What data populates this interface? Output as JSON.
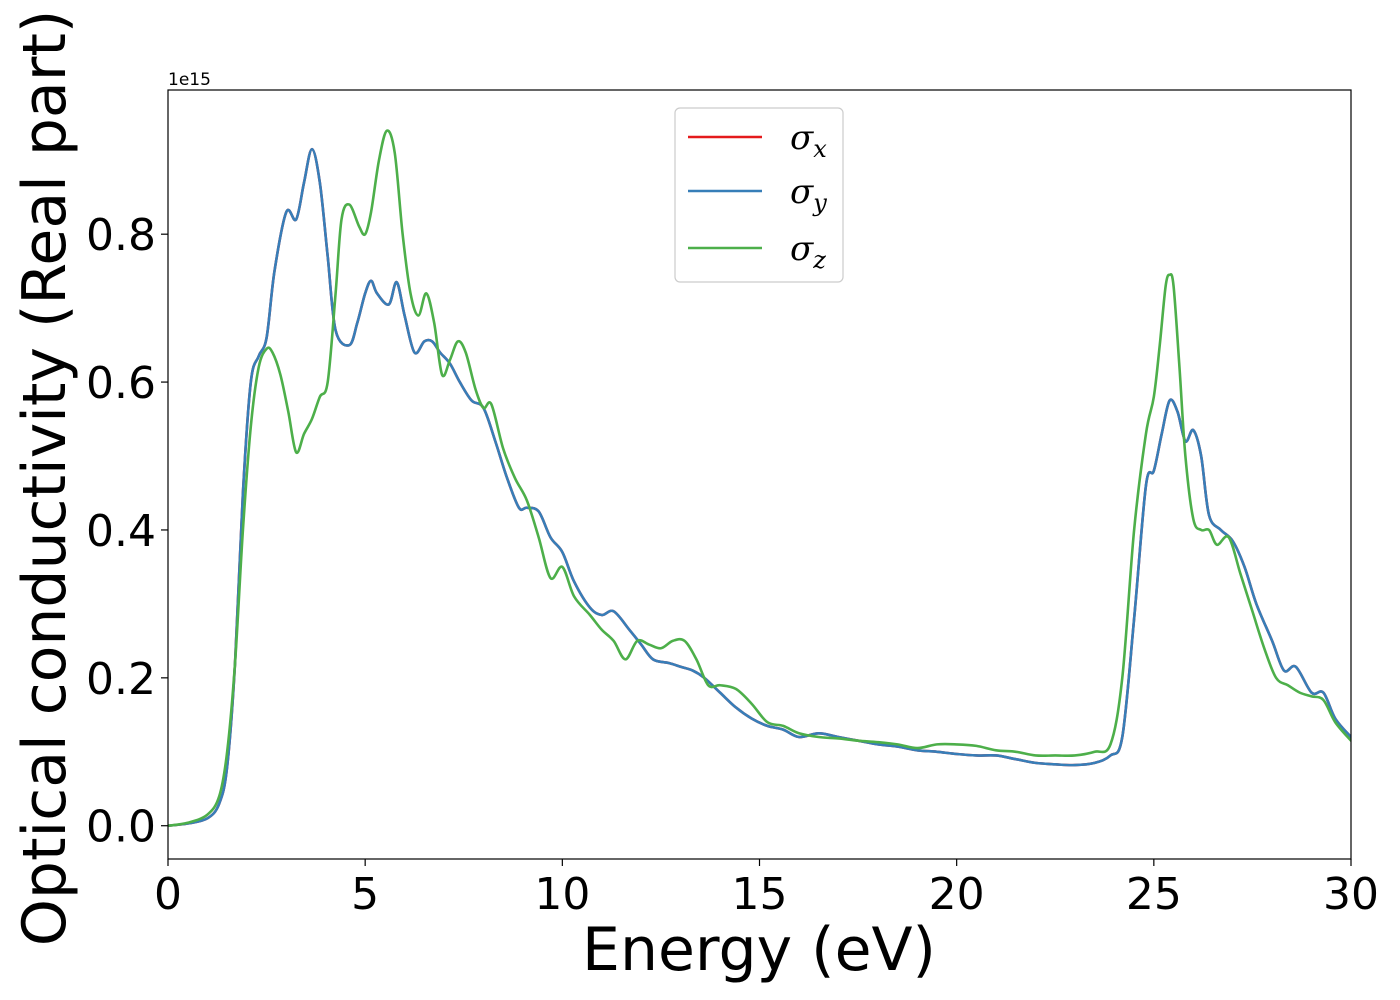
{
  "chart_data": {
    "type": "line",
    "xlabel": "Energy (eV)",
    "ylabel": "Optical conductivity (Real part)",
    "y_offset_label": "1e15",
    "xlim": [
      0,
      30
    ],
    "ylim": [
      -0.045,
      0.995
    ],
    "x_ticks": [
      0,
      5,
      10,
      15,
      20,
      25,
      30
    ],
    "x_tick_labels": [
      "0",
      "5",
      "10",
      "15",
      "20",
      "25",
      "30"
    ],
    "y_ticks": [
      0.0,
      0.2,
      0.4,
      0.6,
      0.8
    ],
    "y_tick_labels": [
      "0.0",
      "0.2",
      "0.4",
      "0.6",
      "0.8"
    ],
    "grid": false,
    "legend_position": "top-center",
    "series": [
      {
        "name": "σx",
        "legend_symbol": "σ",
        "legend_sub": "x",
        "color": "#e41a1c",
        "x": [
          0,
          0.5,
          1.0,
          1.3,
          1.5,
          1.7,
          1.9,
          2.1,
          2.3,
          2.5,
          2.7,
          3.0,
          3.25,
          3.45,
          3.65,
          3.85,
          4.05,
          4.25,
          4.6,
          4.8,
          5.0,
          5.15,
          5.3,
          5.6,
          5.8,
          6.0,
          6.25,
          6.5,
          6.7,
          6.9,
          7.15,
          7.4,
          7.7,
          8.0,
          8.3,
          8.6,
          8.9,
          9.1,
          9.4,
          9.7,
          10.0,
          10.3,
          10.7,
          11.0,
          11.3,
          11.7,
          12.0,
          12.3,
          12.7,
          13.0,
          13.3,
          13.6,
          14.0,
          14.4,
          14.8,
          15.2,
          15.6,
          16.0,
          16.5,
          17.0,
          17.5,
          18.0,
          18.5,
          19.0,
          19.5,
          20.0,
          20.5,
          21.0,
          21.5,
          22.0,
          22.5,
          23.0,
          23.5,
          23.9,
          24.2,
          24.5,
          24.8,
          25.0,
          25.2,
          25.4,
          25.6,
          25.8,
          26.0,
          26.2,
          26.4,
          26.7,
          27.0,
          27.3,
          27.6,
          28.0,
          28.3,
          28.6,
          29.0,
          29.3,
          29.6,
          30.0
        ],
        "y": [
          0.0,
          0.003,
          0.01,
          0.03,
          0.08,
          0.22,
          0.45,
          0.6,
          0.635,
          0.66,
          0.75,
          0.83,
          0.82,
          0.87,
          0.915,
          0.87,
          0.77,
          0.67,
          0.65,
          0.68,
          0.72,
          0.737,
          0.72,
          0.705,
          0.735,
          0.69,
          0.64,
          0.655,
          0.655,
          0.64,
          0.625,
          0.6,
          0.575,
          0.565,
          0.52,
          0.47,
          0.43,
          0.43,
          0.425,
          0.39,
          0.37,
          0.33,
          0.295,
          0.285,
          0.29,
          0.265,
          0.245,
          0.225,
          0.22,
          0.215,
          0.21,
          0.2,
          0.18,
          0.16,
          0.145,
          0.135,
          0.13,
          0.12,
          0.125,
          0.12,
          0.115,
          0.11,
          0.107,
          0.102,
          0.1,
          0.097,
          0.095,
          0.095,
          0.09,
          0.085,
          0.083,
          0.082,
          0.085,
          0.095,
          0.12,
          0.28,
          0.46,
          0.48,
          0.53,
          0.575,
          0.56,
          0.52,
          0.535,
          0.5,
          0.42,
          0.4,
          0.385,
          0.35,
          0.3,
          0.25,
          0.21,
          0.215,
          0.18,
          0.18,
          0.145,
          0.12
        ]
      },
      {
        "name": "σy",
        "legend_symbol": "σ",
        "legend_sub": "y",
        "color": "#377eb8",
        "x": [
          0,
          0.5,
          1.0,
          1.3,
          1.5,
          1.7,
          1.9,
          2.1,
          2.3,
          2.5,
          2.7,
          3.0,
          3.25,
          3.45,
          3.65,
          3.85,
          4.05,
          4.25,
          4.6,
          4.8,
          5.0,
          5.15,
          5.3,
          5.6,
          5.8,
          6.0,
          6.25,
          6.5,
          6.7,
          6.9,
          7.15,
          7.4,
          7.7,
          8.0,
          8.3,
          8.6,
          8.9,
          9.1,
          9.4,
          9.7,
          10.0,
          10.3,
          10.7,
          11.0,
          11.3,
          11.7,
          12.0,
          12.3,
          12.7,
          13.0,
          13.3,
          13.6,
          14.0,
          14.4,
          14.8,
          15.2,
          15.6,
          16.0,
          16.5,
          17.0,
          17.5,
          18.0,
          18.5,
          19.0,
          19.5,
          20.0,
          20.5,
          21.0,
          21.5,
          22.0,
          22.5,
          23.0,
          23.5,
          23.9,
          24.2,
          24.5,
          24.8,
          25.0,
          25.2,
          25.4,
          25.6,
          25.8,
          26.0,
          26.2,
          26.4,
          26.7,
          27.0,
          27.3,
          27.6,
          28.0,
          28.3,
          28.6,
          29.0,
          29.3,
          29.6,
          30.0
        ],
        "y": [
          0.0,
          0.003,
          0.01,
          0.03,
          0.08,
          0.22,
          0.45,
          0.6,
          0.635,
          0.66,
          0.75,
          0.83,
          0.82,
          0.87,
          0.915,
          0.87,
          0.77,
          0.67,
          0.65,
          0.68,
          0.72,
          0.737,
          0.72,
          0.705,
          0.735,
          0.69,
          0.64,
          0.655,
          0.655,
          0.64,
          0.625,
          0.6,
          0.575,
          0.565,
          0.52,
          0.47,
          0.43,
          0.43,
          0.425,
          0.39,
          0.37,
          0.33,
          0.295,
          0.285,
          0.29,
          0.265,
          0.245,
          0.225,
          0.22,
          0.215,
          0.21,
          0.2,
          0.18,
          0.16,
          0.145,
          0.135,
          0.13,
          0.12,
          0.125,
          0.12,
          0.115,
          0.11,
          0.107,
          0.102,
          0.1,
          0.097,
          0.095,
          0.095,
          0.09,
          0.085,
          0.083,
          0.082,
          0.085,
          0.095,
          0.12,
          0.28,
          0.46,
          0.48,
          0.53,
          0.575,
          0.56,
          0.52,
          0.535,
          0.5,
          0.42,
          0.4,
          0.385,
          0.35,
          0.3,
          0.25,
          0.21,
          0.215,
          0.18,
          0.18,
          0.145,
          0.12
        ]
      },
      {
        "name": "σz",
        "legend_symbol": "σ",
        "legend_sub": "z",
        "color": "#4daf4a",
        "x": [
          0,
          0.5,
          1.0,
          1.3,
          1.5,
          1.7,
          1.9,
          2.1,
          2.3,
          2.5,
          2.65,
          2.85,
          3.05,
          3.25,
          3.45,
          3.65,
          3.85,
          4.05,
          4.25,
          4.4,
          4.6,
          4.85,
          5.0,
          5.15,
          5.35,
          5.55,
          5.75,
          5.95,
          6.15,
          6.35,
          6.55,
          6.75,
          6.95,
          7.15,
          7.35,
          7.55,
          7.8,
          8.0,
          8.2,
          8.5,
          8.8,
          9.1,
          9.4,
          9.7,
          10.0,
          10.3,
          10.7,
          11.0,
          11.3,
          11.6,
          11.9,
          12.2,
          12.5,
          12.8,
          13.1,
          13.4,
          13.7,
          14.0,
          14.4,
          14.8,
          15.2,
          15.6,
          16.0,
          16.5,
          17.0,
          17.5,
          18.0,
          18.5,
          19.0,
          19.5,
          20.0,
          20.5,
          21.0,
          21.5,
          22.0,
          22.5,
          23.0,
          23.5,
          23.9,
          24.2,
          24.5,
          24.8,
          25.0,
          25.15,
          25.3,
          25.4,
          25.5,
          25.65,
          25.8,
          26.0,
          26.2,
          26.4,
          26.6,
          26.9,
          27.2,
          27.5,
          27.8,
          28.1,
          28.4,
          28.7,
          29.0,
          29.3,
          29.6,
          30.0
        ],
        "y": [
          0.0,
          0.004,
          0.015,
          0.04,
          0.1,
          0.22,
          0.4,
          0.54,
          0.62,
          0.645,
          0.64,
          0.61,
          0.56,
          0.505,
          0.53,
          0.55,
          0.58,
          0.6,
          0.72,
          0.82,
          0.84,
          0.81,
          0.8,
          0.83,
          0.9,
          0.94,
          0.91,
          0.8,
          0.72,
          0.69,
          0.72,
          0.68,
          0.61,
          0.63,
          0.655,
          0.64,
          0.59,
          0.565,
          0.57,
          0.51,
          0.47,
          0.44,
          0.39,
          0.335,
          0.35,
          0.31,
          0.285,
          0.265,
          0.25,
          0.225,
          0.25,
          0.245,
          0.24,
          0.25,
          0.25,
          0.225,
          0.19,
          0.19,
          0.185,
          0.165,
          0.14,
          0.135,
          0.125,
          0.12,
          0.118,
          0.115,
          0.113,
          0.11,
          0.105,
          0.11,
          0.11,
          0.108,
          0.102,
          0.1,
          0.095,
          0.095,
          0.095,
          0.1,
          0.11,
          0.2,
          0.4,
          0.53,
          0.58,
          0.65,
          0.73,
          0.745,
          0.73,
          0.62,
          0.5,
          0.415,
          0.4,
          0.4,
          0.38,
          0.39,
          0.34,
          0.29,
          0.24,
          0.2,
          0.19,
          0.18,
          0.175,
          0.17,
          0.14,
          0.115
        ]
      }
    ]
  }
}
